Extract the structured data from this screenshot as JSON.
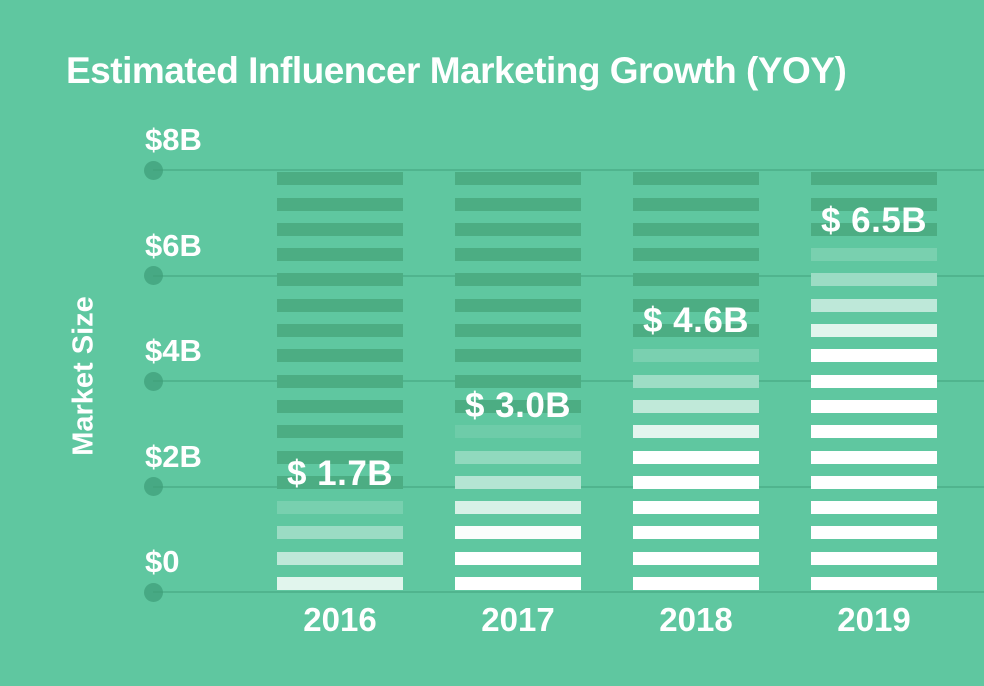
{
  "title": "Estimated Influencer Marketing Growth (YOY)",
  "colors": {
    "background": "#5FC7A0",
    "bar_dark": "#4CAD83",
    "bar_fade_from": "#5FC7A0",
    "bar_white": "#FFFFFF",
    "gridline": "#3E9E78",
    "axis_dot": "#3E9E78",
    "text": "#FFFFFF"
  },
  "chart_data": {
    "type": "bar",
    "title": "Estimated Influencer Marketing Growth (YOY)",
    "xlabel": "",
    "ylabel": "Market Size",
    "unit": "billion USD",
    "categories": [
      "2016",
      "2017",
      "2018",
      "2019"
    ],
    "values": [
      1.7,
      3.0,
      4.6,
      6.5
    ],
    "value_labels": [
      "$ 1.7B",
      "$ 3.0B",
      "$ 4.6B",
      "$ 6.5B"
    ],
    "ylim": [
      0,
      8
    ],
    "yticks": [
      {
        "label": "$0",
        "value": 0
      },
      {
        "label": "$2B",
        "value": 2
      },
      {
        "label": "$4B",
        "value": 4
      },
      {
        "label": "$6B",
        "value": 6
      },
      {
        "label": "$8B",
        "value": 8
      }
    ],
    "grid": true,
    "legend": false,
    "bar_style": "horizontal-stripes fading from dark green above value to white below value"
  }
}
